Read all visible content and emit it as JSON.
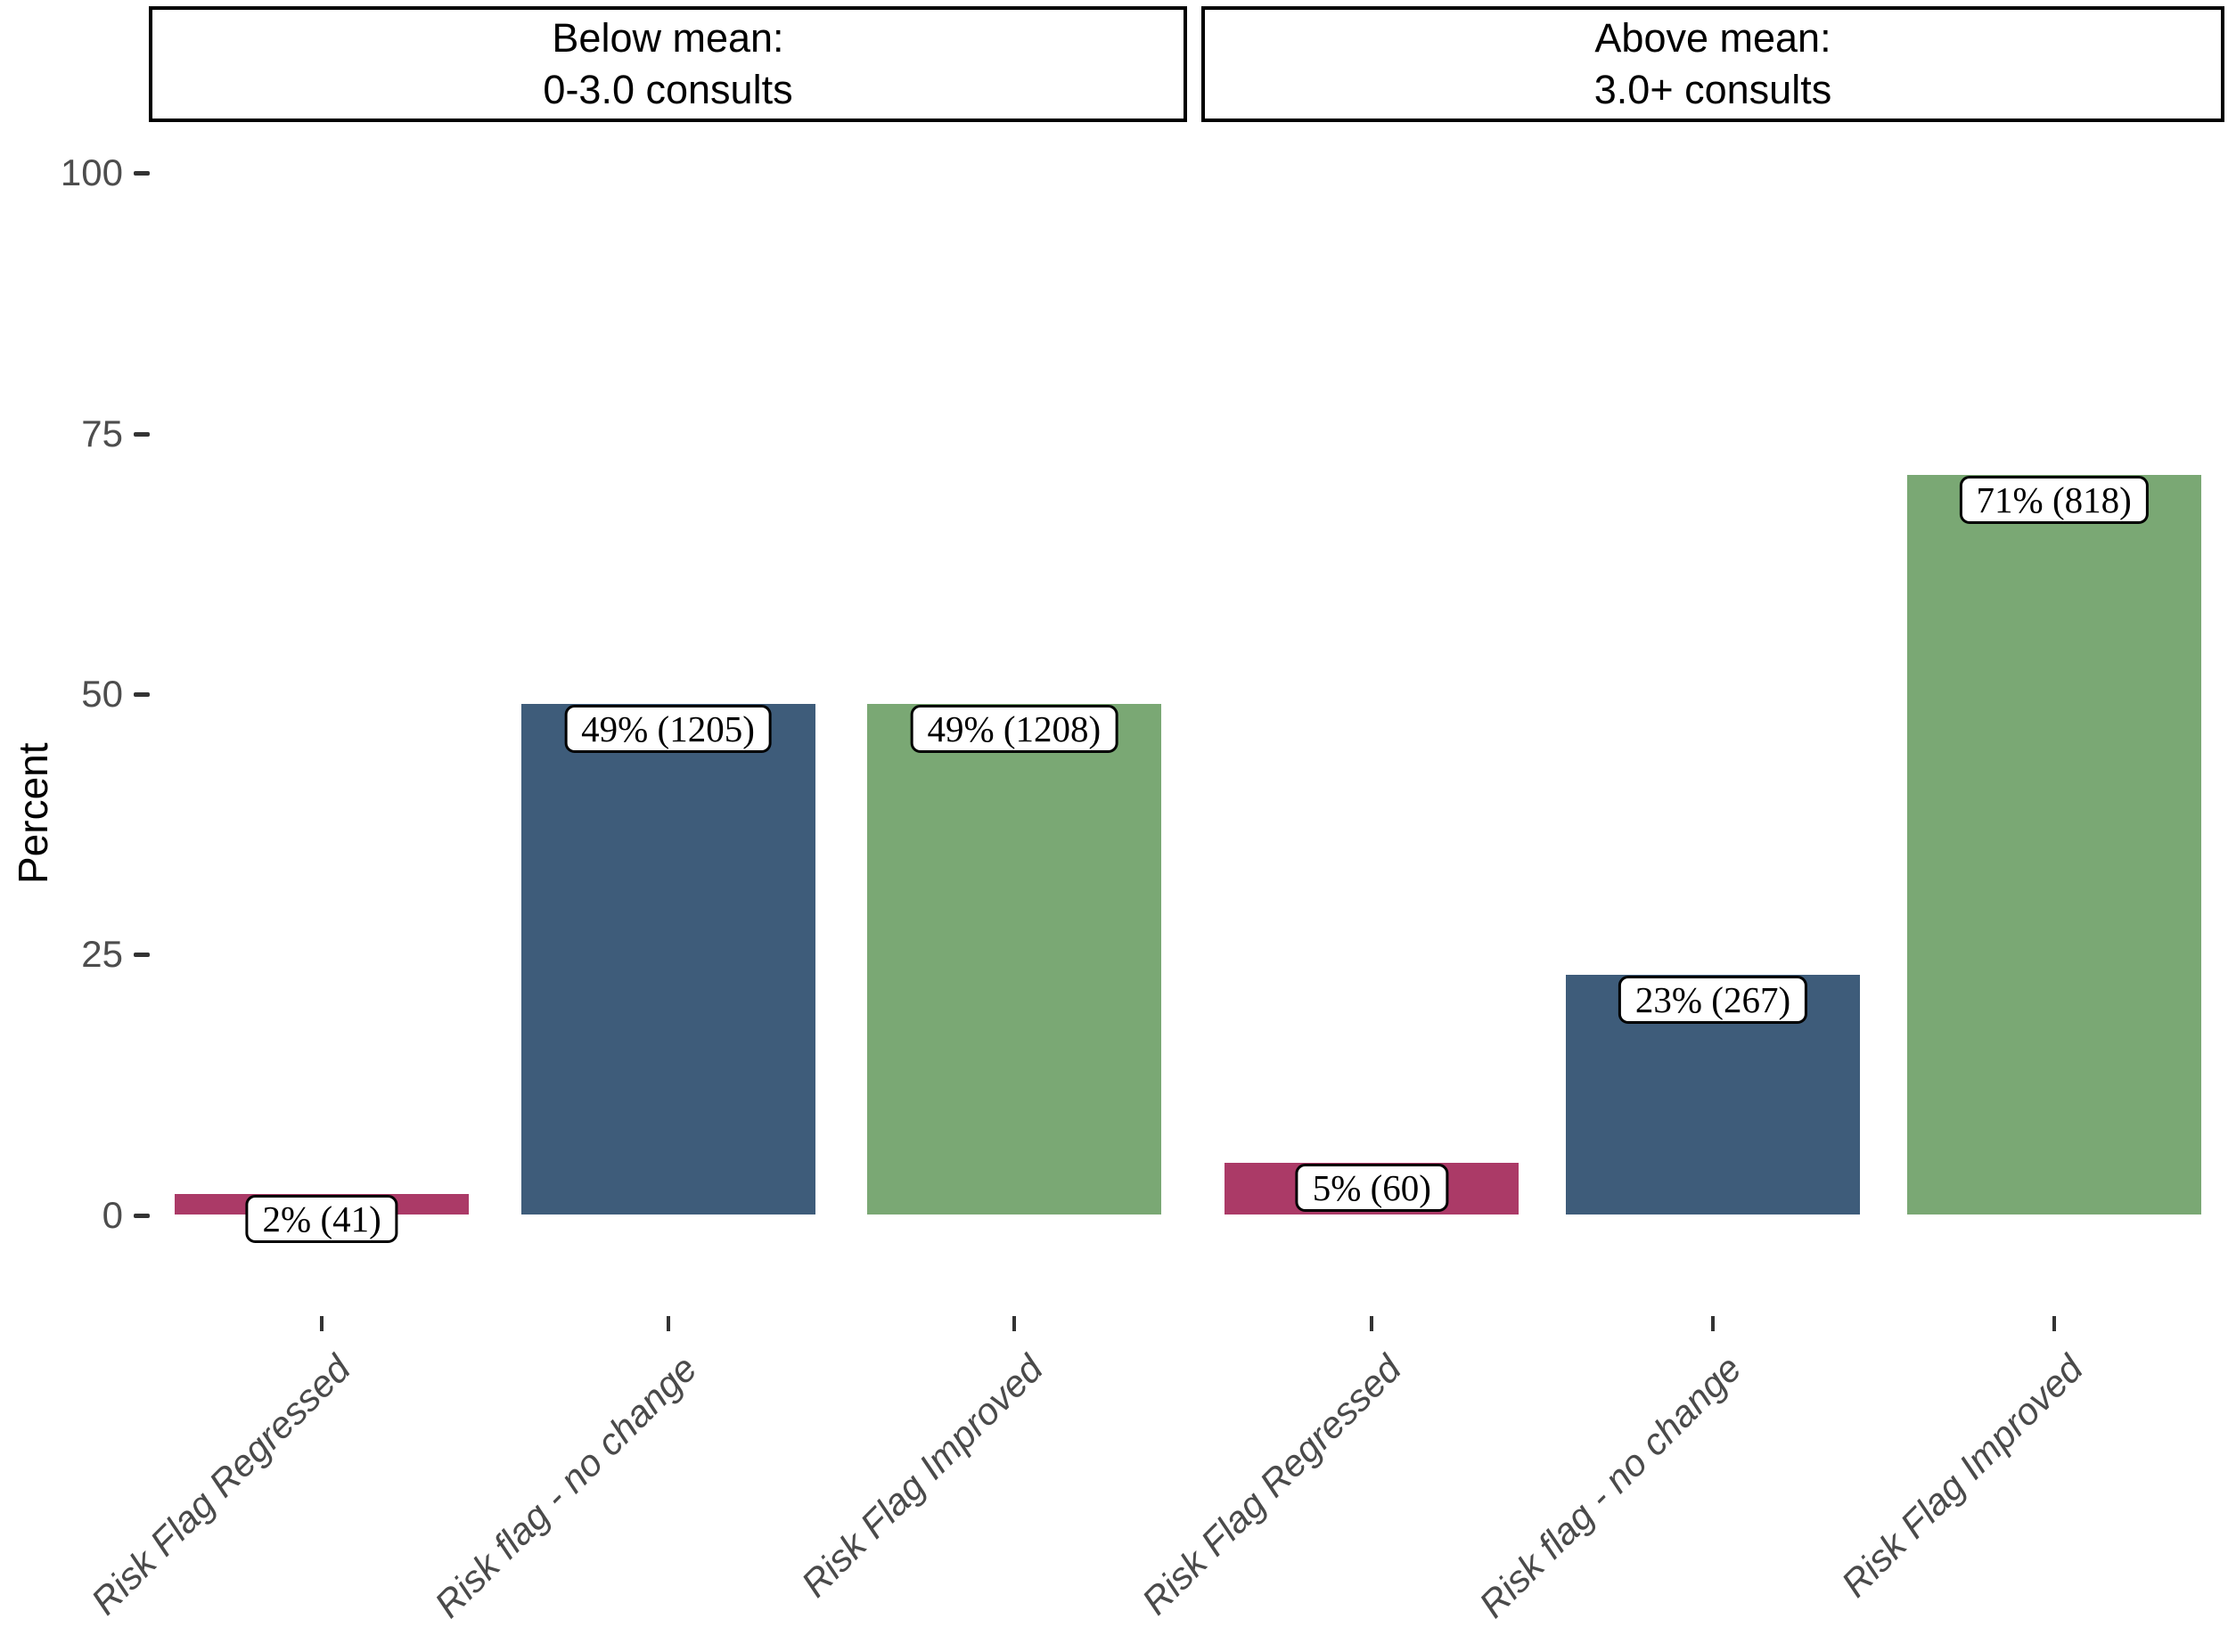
{
  "chart_data": {
    "type": "bar",
    "title": "",
    "xlabel": "",
    "ylabel": "Percent",
    "ylim": [
      0,
      100
    ],
    "yticks": [
      0,
      25,
      50,
      75,
      100
    ],
    "ytick_labels_top_down": [
      "100",
      "75",
      "50",
      "25",
      "0"
    ],
    "grid": false,
    "legend": "none",
    "categories": [
      "Risk Flag Regressed",
      "Risk flag - no change",
      "Risk Flag Improved"
    ],
    "bar_colors": [
      "#ab3a67",
      "#3e5c7a",
      "#7aa874"
    ],
    "facets": [
      {
        "label_line1": "Below mean:",
        "label_line2": "0-3.0 consults",
        "values": [
          2,
          49,
          49
        ],
        "counts": [
          41,
          1205,
          1208
        ],
        "bar_labels": [
          "2% (41)",
          "49% (1205)",
          "49% (1208)"
        ]
      },
      {
        "label_line1": "Above mean:",
        "label_line2": "3.0+ consults",
        "values": [
          5,
          23,
          71
        ],
        "counts": [
          60,
          267,
          818
        ],
        "bar_labels": [
          "5% (60)",
          "23% (267)",
          "71% (818)"
        ]
      }
    ],
    "axis_text_color": "#4d4d4d",
    "tick_mark_color": "#333333",
    "label_box_border_color": "#000000",
    "label_box_fill": "#ffffff"
  }
}
